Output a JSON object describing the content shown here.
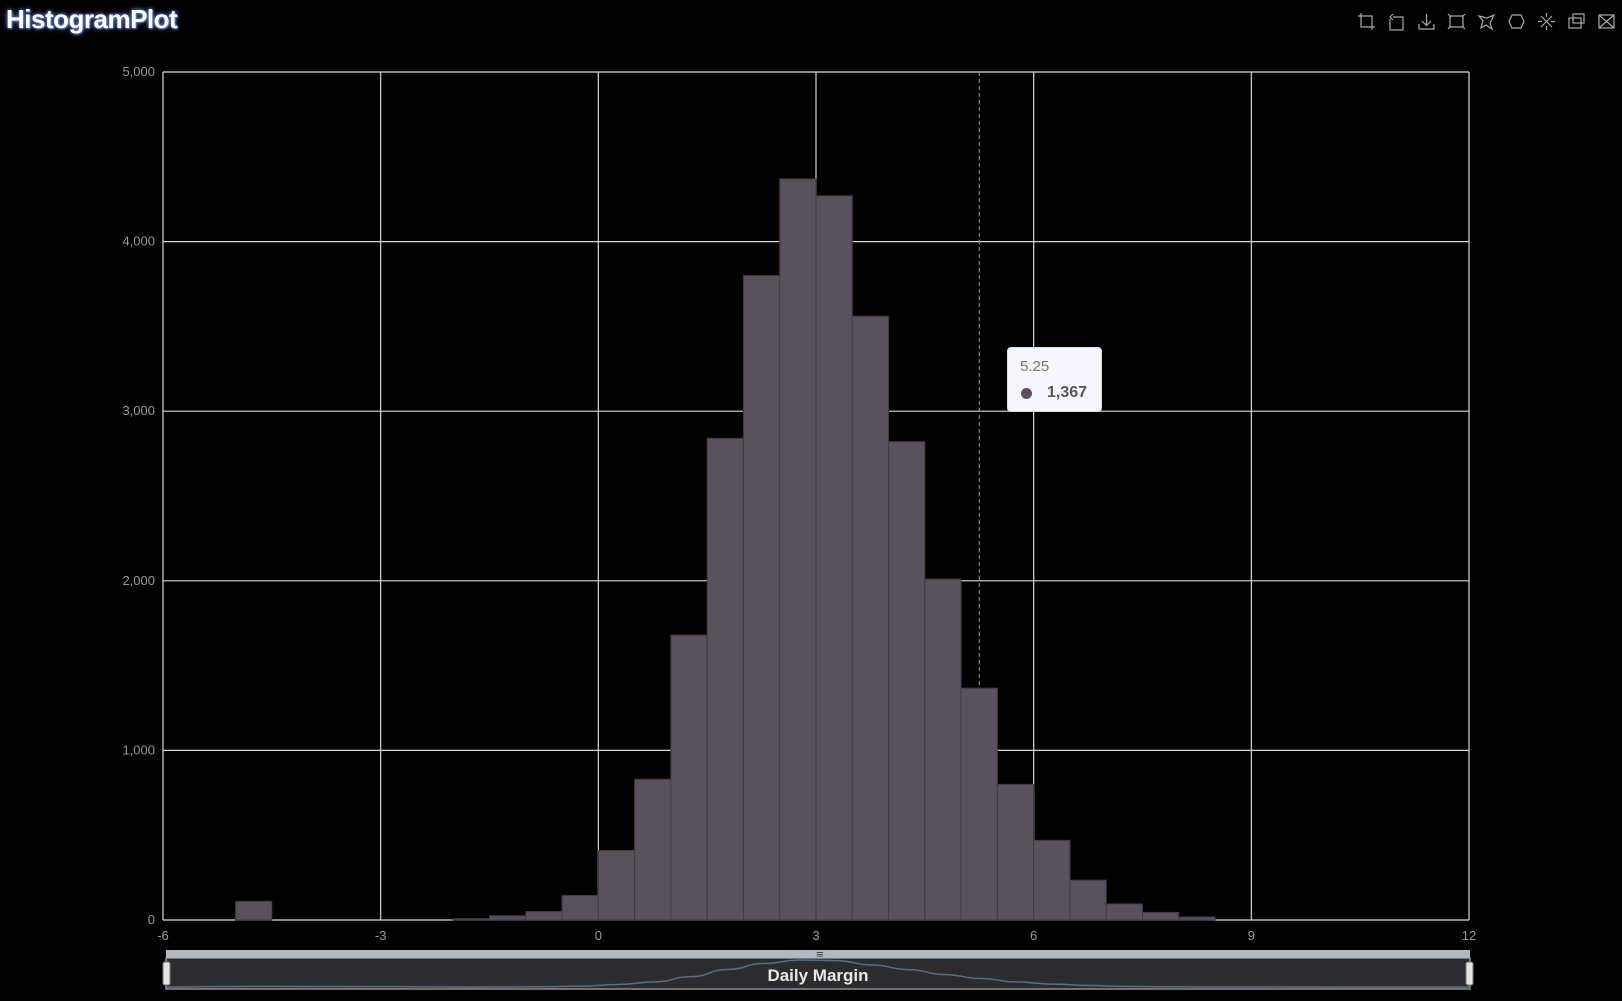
{
  "title": "HistogramPlot",
  "toolbox": [
    {
      "name": "zoom-icon"
    },
    {
      "name": "zoom-back-icon"
    },
    {
      "name": "save-image-icon"
    },
    {
      "name": "rect-select-icon"
    },
    {
      "name": "polygon-select-icon"
    },
    {
      "name": "line-select-icon"
    },
    {
      "name": "keep-select-icon"
    },
    {
      "name": "clear-select-icon"
    },
    {
      "name": "restore-icon"
    }
  ],
  "tooltip": {
    "x_label": "5.25",
    "value_label": "1,367"
  },
  "datazoom": {
    "label": "Daily Margin",
    "range": [
      0,
      1
    ]
  },
  "colors": {
    "bar": "#57525c",
    "bar_border": "#3f3b44",
    "grid": "#d9d9d9",
    "background": "#000000"
  },
  "chart_data": {
    "type": "bar",
    "title": "HistogramPlot",
    "xlabel": "Daily Margin",
    "ylabel": "",
    "xlim": [
      -6,
      12
    ],
    "ylim": [
      0,
      5000
    ],
    "x_ticks": [
      -6,
      -3,
      0,
      3,
      6,
      9,
      12
    ],
    "x_tick_labels": [
      "-6",
      "-3",
      "0",
      "3",
      "6",
      "9",
      "12"
    ],
    "y_ticks": [
      0,
      1000,
      2000,
      3000,
      4000,
      5000
    ],
    "y_tick_labels": [
      "0",
      "1,000",
      "2,000",
      "3,000",
      "4,000",
      "5,000"
    ],
    "grid": true,
    "bin_width": 0.5,
    "bins": [
      {
        "x0": -5.0,
        "x1": -4.5,
        "count": 110
      },
      {
        "x0": -2.0,
        "x1": -1.5,
        "count": 8
      },
      {
        "x0": -1.5,
        "x1": -1.0,
        "count": 25
      },
      {
        "x0": -1.0,
        "x1": -0.5,
        "count": 50
      },
      {
        "x0": -0.5,
        "x1": 0.0,
        "count": 145
      },
      {
        "x0": 0.0,
        "x1": 0.5,
        "count": 410
      },
      {
        "x0": 0.5,
        "x1": 1.0,
        "count": 830
      },
      {
        "x0": 1.0,
        "x1": 1.5,
        "count": 1680
      },
      {
        "x0": 1.5,
        "x1": 2.0,
        "count": 2840
      },
      {
        "x0": 2.0,
        "x1": 2.5,
        "count": 3800
      },
      {
        "x0": 2.5,
        "x1": 3.0,
        "count": 4370
      },
      {
        "x0": 3.0,
        "x1": 3.5,
        "count": 4270
      },
      {
        "x0": 3.5,
        "x1": 4.0,
        "count": 3560
      },
      {
        "x0": 4.0,
        "x1": 4.5,
        "count": 2820
      },
      {
        "x0": 4.5,
        "x1": 5.0,
        "count": 2010
      },
      {
        "x0": 5.0,
        "x1": 5.5,
        "count": 1367
      },
      {
        "x0": 5.5,
        "x1": 6.0,
        "count": 800
      },
      {
        "x0": 6.0,
        "x1": 6.5,
        "count": 470
      },
      {
        "x0": 6.5,
        "x1": 7.0,
        "count": 235
      },
      {
        "x0": 7.0,
        "x1": 7.5,
        "count": 95
      },
      {
        "x0": 7.5,
        "x1": 8.0,
        "count": 45
      },
      {
        "x0": 8.0,
        "x1": 8.5,
        "count": 18
      }
    ],
    "highlight_x": 5.25
  }
}
